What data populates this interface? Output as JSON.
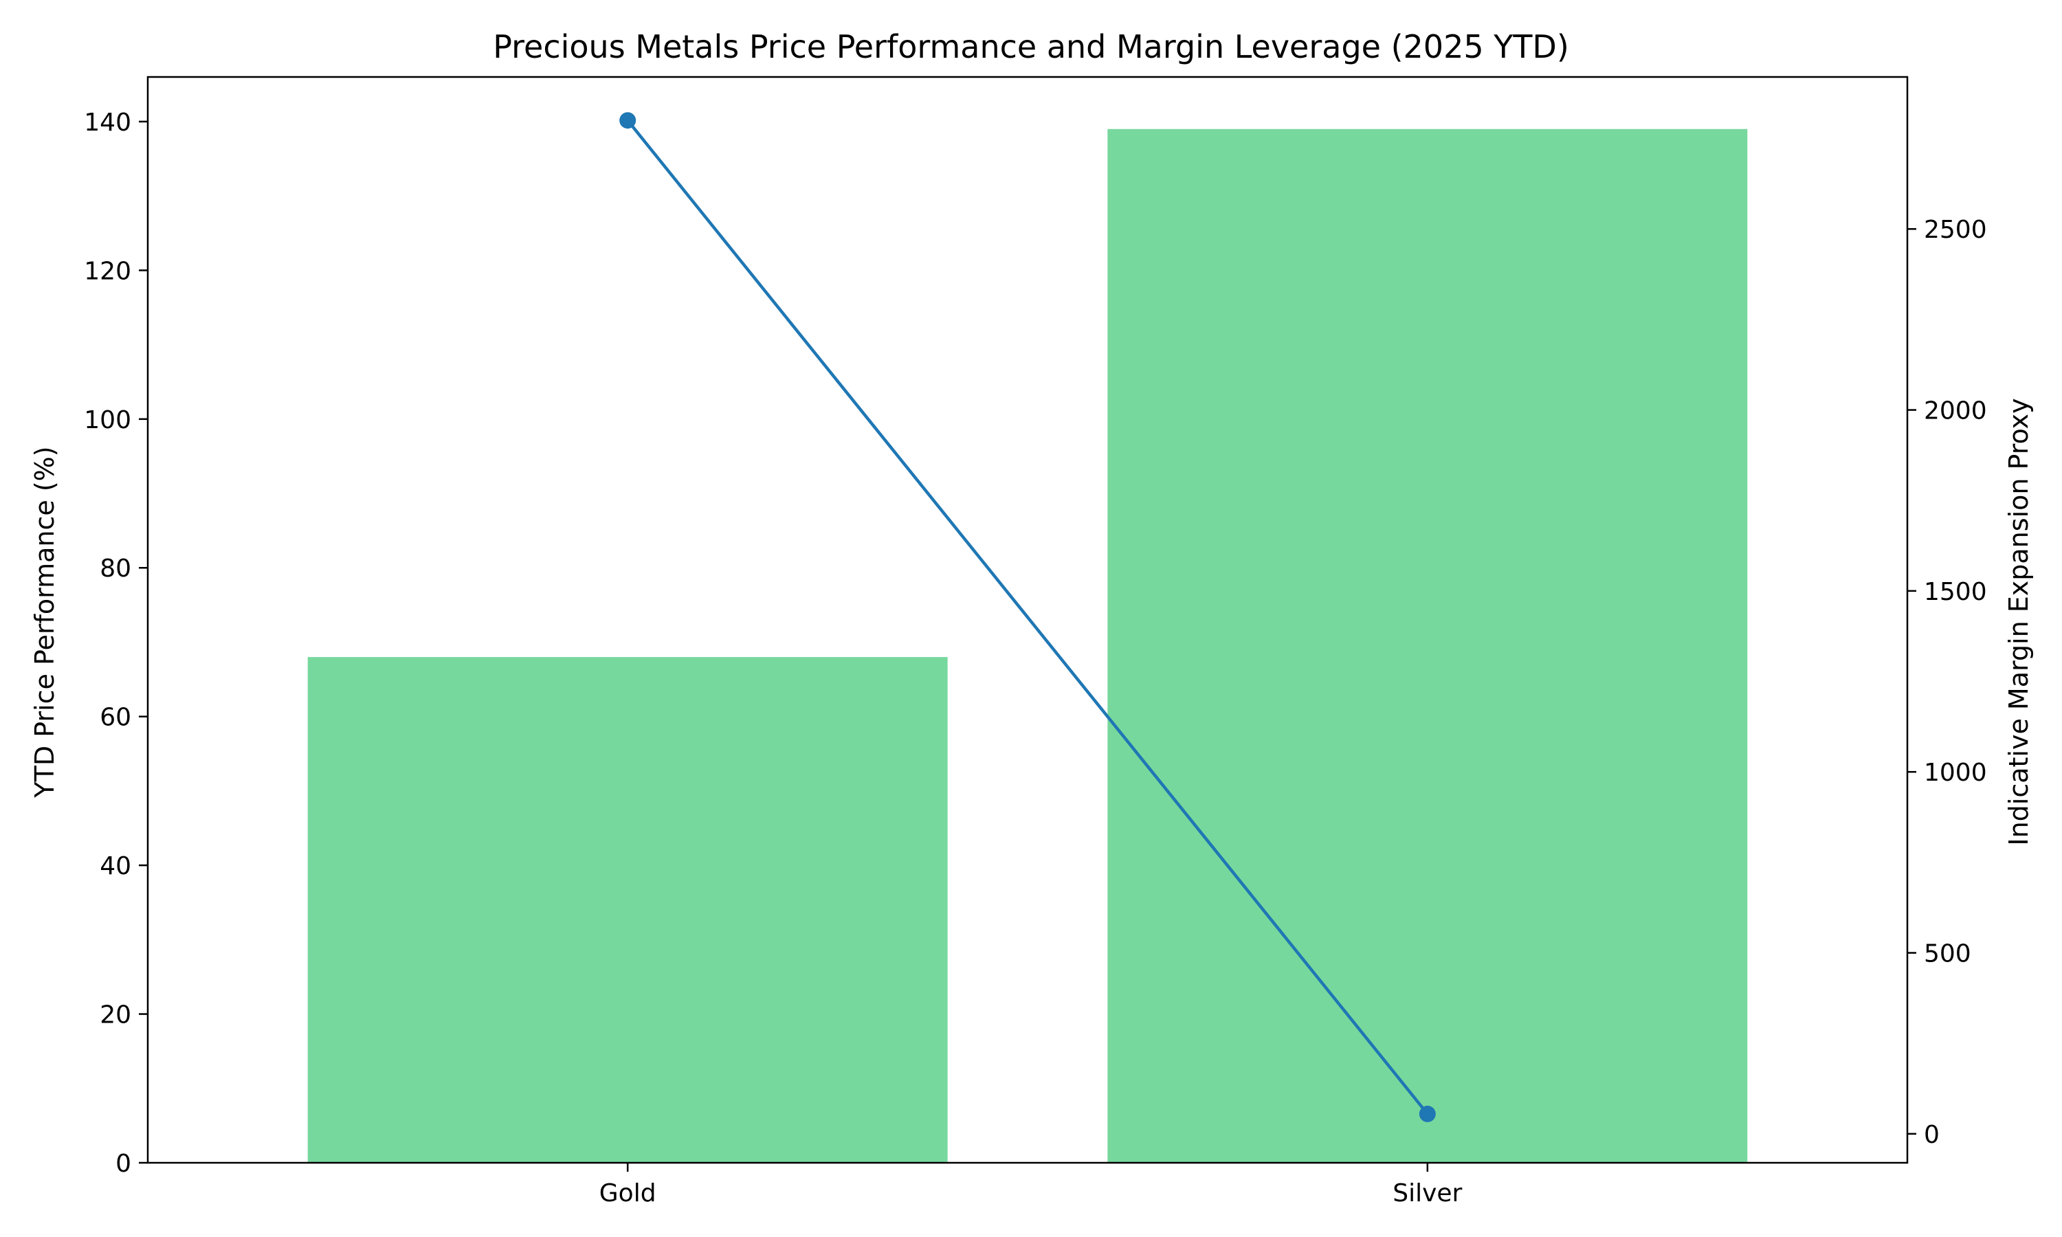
{
  "chart_data": {
    "type": "bar",
    "title": "Precious Metals Price Performance and Margin Leverage (2025 YTD)",
    "categories": [
      "Gold",
      "Silver"
    ],
    "xlabel": "",
    "ylabel": "YTD Price Performance (%)",
    "y2label": "Indicative Margin Expansion Proxy",
    "ylim": [
      0,
      146
    ],
    "y2lim": [
      -80,
      2920
    ],
    "yticks": [
      0,
      20,
      40,
      60,
      80,
      100,
      120,
      140
    ],
    "y2ticks": [
      0,
      500,
      1000,
      1500,
      2000,
      2500
    ],
    "grid": false,
    "legend": "none",
    "series": [
      {
        "kind": "bar",
        "axis": "left",
        "values": [
          68,
          139
        ],
        "color": "#77d89d"
      },
      {
        "kind": "line",
        "axis": "right",
        "marker": "circle",
        "values": [
          2800,
          55
        ],
        "color": "#1f77b4"
      }
    ]
  }
}
